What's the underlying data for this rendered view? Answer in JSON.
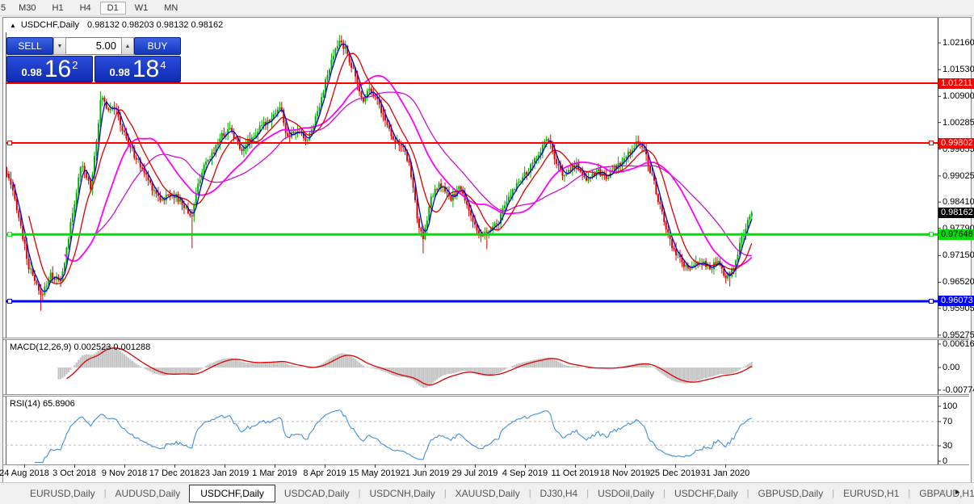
{
  "app": {
    "toolbar": {
      "timeframes": [
        "5",
        "M30",
        "H1",
        "H4",
        "D1",
        "W1",
        "MN"
      ],
      "active_timeframe": "D1"
    },
    "window_title": {
      "collapse_icon": "▲",
      "symbol": "USDCHF,Daily",
      "ohlc": "0.98132 0.98203 0.98132 0.98162"
    },
    "trade_panel": {
      "sell_label": "SELL",
      "buy_label": "BUY",
      "volume": "5.00",
      "spin_down_icon": "▼",
      "spin_up_icon": "▲",
      "sell_price": {
        "prefix": "0.98",
        "big": "16",
        "sup": "2"
      },
      "buy_price": {
        "prefix": "0.98",
        "big": "18",
        "sup": "4"
      }
    },
    "tabs": {
      "items": [
        "EURUSD,Daily",
        "AUDUSD,Daily",
        "USDCHF,Daily",
        "USDCAD,Daily",
        "USDCNH,Daily",
        "XAUUSD,Daily",
        "DJ30,H4",
        "USDOil,Daily",
        "USDCHF,Daily",
        "GBPUSD,Daily",
        "EURUSD,H1",
        "GBPAUD,H1"
      ],
      "active_index": 2,
      "scroll_left_icon": "◄",
      "scroll_right_icon": "►"
    }
  },
  "chart_data": {
    "type": "candlestick",
    "symbol": "USDCHF",
    "timeframe": "Daily",
    "current_price": "0.98162",
    "price_axis_labels": [
      "1.02160",
      "1.01530",
      "1.00900",
      "1.00285",
      "0.99655",
      "0.99025",
      "0.98410",
      "0.97790",
      "0.97150",
      "0.96520",
      "0.95905",
      "0.95275"
    ],
    "hlines": [
      {
        "price": 1.01211,
        "label": "1.01211",
        "color": "#ff0000",
        "width": 2,
        "text_color": "#ffffff"
      },
      {
        "price": 0.99802,
        "label": "0.99802",
        "color": "#ff0000",
        "width": 2,
        "text_color": "#ffffff"
      },
      {
        "price": 0.97648,
        "label": "0.97648",
        "color": "#00e000",
        "width": 3,
        "text_color": "#000000"
      },
      {
        "price": 0.96073,
        "label": "0.96073",
        "color": "#0000ff",
        "width": 3,
        "text_color": "#ffffff"
      }
    ],
    "date_axis": [
      "24 Aug 2018",
      "3 Oct 2018",
      "9 Nov 2018",
      "17 Dec 2018",
      "23 Jan 2019",
      "1 Mar 2019",
      "8 Apr 2019",
      "15 May 2019",
      "21 Jun 2019",
      "29 Jul 2019",
      "4 Sep 2019",
      "11 Oct 2019",
      "18 Nov 2019",
      "25 Dec 2019",
      "31 Jan 2020"
    ],
    "candle_up_color": "#00b000",
    "candle_down_color": "#e00000",
    "ma_colors": {
      "fast": "#0000cc",
      "mid": "#dc0000",
      "slow": "#ff00ff",
      "slow2": "#cc00cc"
    },
    "price_path": [
      [
        4,
        0.9908
      ],
      [
        16,
        0.9832
      ],
      [
        31,
        0.9689
      ],
      [
        46,
        0.9618
      ],
      [
        58,
        0.967
      ],
      [
        71,
        0.9651
      ],
      [
        86,
        0.9822
      ],
      [
        96,
        0.9927
      ],
      [
        108,
        0.9876
      ],
      [
        121,
        1.0093
      ],
      [
        129,
        1.006
      ],
      [
        136,
        1.0073
      ],
      [
        146,
        1.0016
      ],
      [
        158,
        0.9965
      ],
      [
        171,
        0.9921
      ],
      [
        184,
        0.9876
      ],
      [
        196,
        0.9845
      ],
      [
        208,
        0.9864
      ],
      [
        221,
        0.9837
      ],
      [
        233,
        0.9807
      ],
      [
        244,
        0.9908
      ],
      [
        256,
        0.9946
      ],
      [
        268,
        0.9994
      ],
      [
        281,
        1.0016
      ],
      [
        293,
        0.9965
      ],
      [
        306,
        0.999
      ],
      [
        318,
        1.0016
      ],
      [
        331,
        1.0041
      ],
      [
        343,
        1.0066
      ],
      [
        351,
        0.999
      ],
      [
        364,
        1.0009
      ],
      [
        376,
        0.9984
      ],
      [
        388,
        1.0051
      ],
      [
        399,
        1.0127
      ],
      [
        409,
        1.0188
      ],
      [
        416,
        1.0222
      ],
      [
        424,
        1.0199
      ],
      [
        433,
        1.015
      ],
      [
        444,
        1.0079
      ],
      [
        453,
        1.0111
      ],
      [
        462,
        1.0085
      ],
      [
        472,
        1.0035
      ],
      [
        482,
        0.9994
      ],
      [
        493,
        0.9971
      ],
      [
        503,
        0.9927
      ],
      [
        512,
        0.9807
      ],
      [
        519,
        0.9746
      ],
      [
        529,
        0.9851
      ],
      [
        541,
        0.9883
      ],
      [
        553,
        0.9845
      ],
      [
        564,
        0.9876
      ],
      [
        576,
        0.9826
      ],
      [
        588,
        0.9756
      ],
      [
        598,
        0.9769
      ],
      [
        611,
        0.9788
      ],
      [
        624,
        0.9845
      ],
      [
        636,
        0.9889
      ],
      [
        648,
        0.9908
      ],
      [
        661,
        0.9952
      ],
      [
        674,
        0.9997
      ],
      [
        684,
        0.9927
      ],
      [
        696,
        0.9902
      ],
      [
        708,
        0.9933
      ],
      [
        721,
        0.9895
      ],
      [
        734,
        0.9914
      ],
      [
        746,
        0.9902
      ],
      [
        758,
        0.9921
      ],
      [
        771,
        0.9946
      ],
      [
        784,
        0.9984
      ],
      [
        793,
        0.9965
      ],
      [
        804,
        0.9895
      ],
      [
        816,
        0.9807
      ],
      [
        828,
        0.9731
      ],
      [
        839,
        0.9699
      ],
      [
        851,
        0.968
      ],
      [
        861,
        0.9704
      ],
      [
        873,
        0.9685
      ],
      [
        884,
        0.9697
      ],
      [
        894,
        0.9661
      ],
      [
        904,
        0.9685
      ],
      [
        912,
        0.9742
      ],
      [
        920,
        0.9788
      ],
      [
        927,
        0.98162
      ]
    ],
    "wick_lows": [
      [
        46,
        0.9585
      ],
      [
        233,
        0.9732
      ],
      [
        519,
        0.972
      ],
      [
        598,
        0.973
      ],
      [
        899,
        0.9642
      ]
    ],
    "wick_highs": [
      [
        416,
        1.0235
      ],
      [
        121,
        1.0102
      ]
    ],
    "macd": {
      "label": "MACD(12,26,9)",
      "value_main": "0.002523",
      "value_signal": "0.001288",
      "axis_labels": [
        "0.006166",
        "0.00",
        "-0.00774"
      ],
      "histogram_color": "#c4c4c4",
      "signal_color": "#dd0000"
    },
    "rsi": {
      "label": "RSI(14)",
      "value": "65.8906",
      "axis_labels": [
        "100",
        "70",
        "30",
        "0"
      ],
      "levels": [
        70,
        30
      ],
      "line_color": "#3f8fdc",
      "level_color": "#bbbbbb"
    }
  }
}
